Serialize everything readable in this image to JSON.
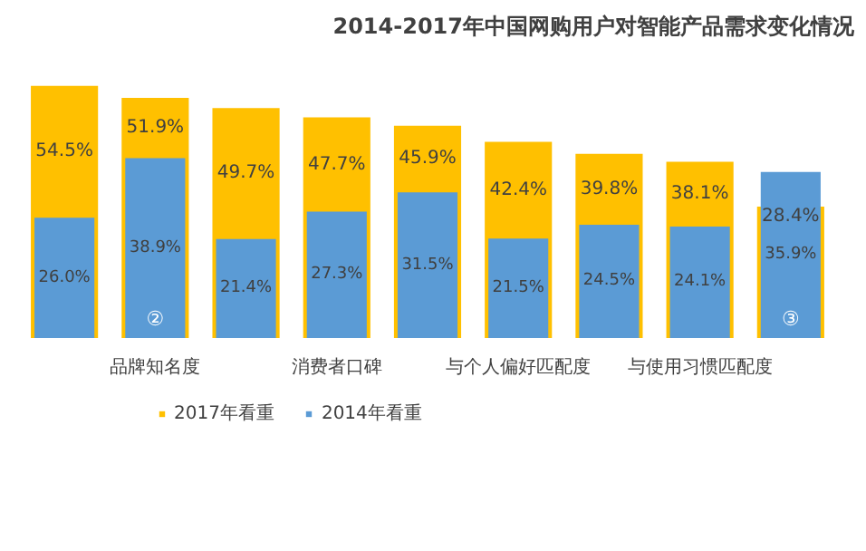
{
  "chart_data": {
    "type": "bar",
    "title": "2014-2017年中国网购用户对智能产品需求变化情况",
    "categories": [
      null,
      "品牌知名度",
      null,
      "消费者口碑",
      null,
      "与个人偏好匹配度",
      null,
      "与使用习惯匹配度",
      null
    ],
    "series": [
      {
        "name": "2017年看重",
        "color": "#ffc000",
        "values": [
          54.5,
          51.9,
          49.7,
          47.7,
          45.9,
          42.4,
          39.8,
          38.1,
          28.4
        ],
        "value_labels": [
          "54.5%",
          "51.9%",
          "49.7%",
          "47.7%",
          "45.9%",
          "42.4%",
          "39.8%",
          "38.1%",
          "28.4%"
        ]
      },
      {
        "name": "2014年看重",
        "color": "#5b9bd5",
        "values": [
          26.0,
          38.9,
          21.4,
          27.3,
          31.5,
          21.5,
          24.5,
          24.1,
          35.9
        ],
        "value_labels": [
          "26.0%",
          "38.9%",
          "21.4%",
          "27.3%",
          "31.5%",
          "21.5%",
          "24.5%",
          "24.1%",
          "35.9%"
        ]
      }
    ],
    "annotations": [
      "②",
      "③"
    ],
    "legend": "bottom"
  }
}
